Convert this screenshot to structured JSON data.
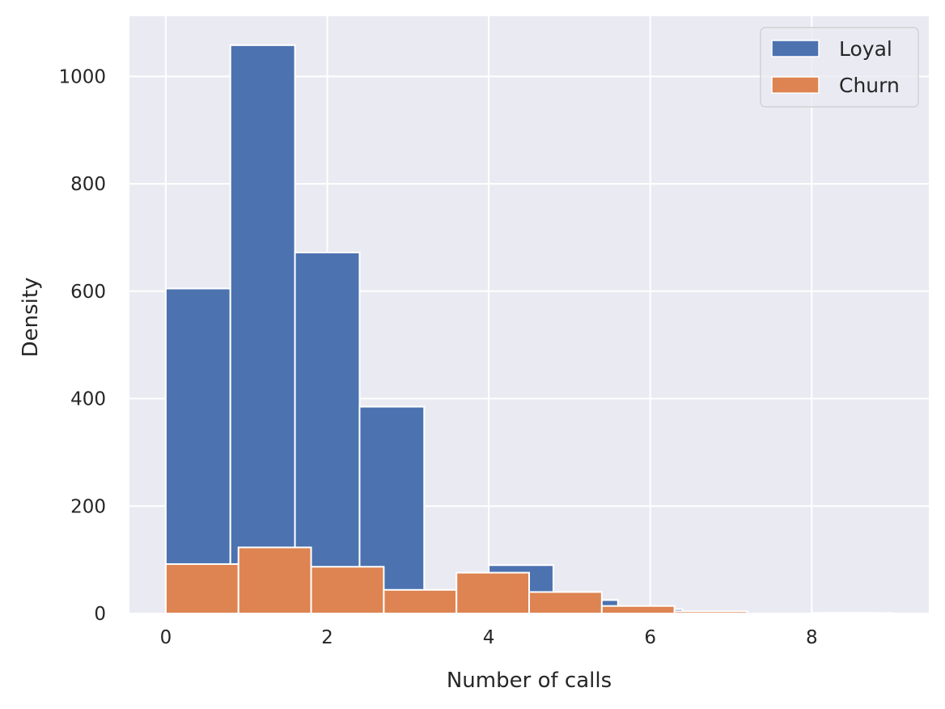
{
  "chart_data": {
    "type": "bar",
    "title": "",
    "xlabel": "Number of calls",
    "ylabel": "Density",
    "xlim": [
      -0.45,
      9.45
    ],
    "ylim": [
      0,
      1112
    ],
    "xticks": [
      0,
      2,
      4,
      6,
      8
    ],
    "yticks": [
      0,
      200,
      400,
      600,
      800,
      1000
    ],
    "grid": true,
    "legend_position": "top-right",
    "series": [
      {
        "name": "Loyal",
        "color": "#4c72b0",
        "bins": [
          {
            "x0": 0.0,
            "x1": 0.8,
            "value": 605
          },
          {
            "x0": 0.8,
            "x1": 1.6,
            "value": 1058
          },
          {
            "x0": 1.6,
            "x1": 2.4,
            "value": 672
          },
          {
            "x0": 2.4,
            "x1": 3.2,
            "value": 385
          },
          {
            "x0": 3.2,
            "x1": 4.0,
            "value": 0
          },
          {
            "x0": 4.0,
            "x1": 4.8,
            "value": 90
          },
          {
            "x0": 4.8,
            "x1": 5.6,
            "value": 25
          },
          {
            "x0": 5.6,
            "x1": 6.4,
            "value": 8
          },
          {
            "x0": 6.4,
            "x1": 7.2,
            "value": 3
          },
          {
            "x0": 7.2,
            "x1": 8.0,
            "value": 0
          },
          {
            "x0": 8.0,
            "x1": 8.8,
            "value": 1
          }
        ]
      },
      {
        "name": "Churn",
        "color": "#dd8452",
        "bins": [
          {
            "x0": 0.0,
            "x1": 0.9,
            "value": 92
          },
          {
            "x0": 0.9,
            "x1": 1.8,
            "value": 123
          },
          {
            "x0": 1.8,
            "x1": 2.7,
            "value": 87
          },
          {
            "x0": 2.7,
            "x1": 3.6,
            "value": 44
          },
          {
            "x0": 3.6,
            "x1": 4.5,
            "value": 76
          },
          {
            "x0": 4.5,
            "x1": 5.4,
            "value": 40
          },
          {
            "x0": 5.4,
            "x1": 6.3,
            "value": 14
          },
          {
            "x0": 6.3,
            "x1": 7.2,
            "value": 4
          },
          {
            "x0": 7.2,
            "x1": 8.1,
            "value": 0
          },
          {
            "x0": 8.1,
            "x1": 9.0,
            "value": 1
          }
        ]
      }
    ]
  }
}
